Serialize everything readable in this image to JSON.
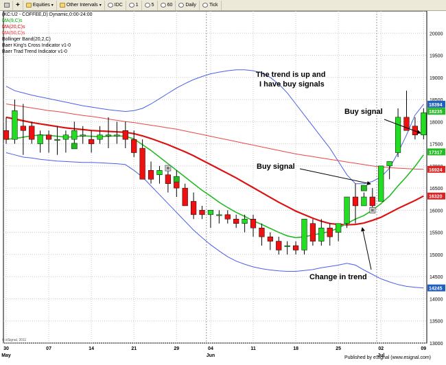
{
  "toolbar": {
    "items": [
      {
        "label": "",
        "icon": "pin-icon"
      },
      {
        "label": "",
        "icon": "plus-icon"
      },
      {
        "label": "Equities",
        "icon": "folder-icon",
        "dropdown": true
      },
      {
        "label": "Other Intervals",
        "icon": "folder-icon",
        "dropdown": true
      },
      {
        "label": "IDC",
        "icon": "clock-icon"
      },
      {
        "label": "1",
        "icon": "clock-icon"
      },
      {
        "label": "5",
        "icon": "clock-icon"
      },
      {
        "label": "60",
        "icon": "clock-icon"
      },
      {
        "label": "Daily",
        "icon": "clock-icon"
      },
      {
        "label": "Tick",
        "icon": "clock-icon"
      }
    ]
  },
  "legend": {
    "title": "(KC:U2 - COFFEE,D) Dynamic,0:00-24:00",
    "lines": [
      {
        "text": "MA(9,C)s",
        "color": "#00aa00"
      },
      {
        "text": "MA(20,C)s",
        "color": "#dd0000"
      },
      {
        "text": "MA(50,C)s",
        "color": "#ee3333"
      },
      {
        "text": "Bollinger Band(20,2,C)",
        "color": "#000000"
      },
      {
        "text": "Baer King's Cross Indicator v1-0",
        "color": "#000000"
      },
      {
        "text": "Baer Trad Trend Indicator v1-0",
        "color": "#000000"
      }
    ]
  },
  "annotations": [
    {
      "text": "The trend is up and",
      "x": "May 24",
      "y": 18950
    },
    {
      "text": "I have buy signals",
      "x": "May 24",
      "y": 18650
    },
    {
      "text": "Buy signal",
      "x": "Jun 28",
      "y": 17450
    },
    {
      "text": "Buy signal",
      "x": "Jul 02",
      "y": 18620
    },
    {
      "text": "Change in trend",
      "x": "Jun 25",
      "y": 14790
    }
  ],
  "price_badges": [
    {
      "value": "18394",
      "color": "#1f5fbf"
    },
    {
      "value": "18235",
      "color": "#22bb22"
    },
    {
      "value": "17317",
      "color": "#22bb22"
    },
    {
      "value": "16924",
      "color": "#dd2222"
    },
    {
      "value": "16320",
      "color": "#dd2222"
    },
    {
      "value": "14245",
      "color": "#1f5fbf"
    }
  ],
  "footer": {
    "watermark": "© eSignal, 2011",
    "published": "Published by eSignal (www.esignal.com)"
  },
  "chart_data": {
    "type": "candlestick",
    "symbol": "KC:U2",
    "name": "COFFEE",
    "interval": "D",
    "ylim": [
      13000,
      20500
    ],
    "yticks": [
      13000,
      13500,
      14000,
      14500,
      15000,
      15500,
      16000,
      16500,
      17000,
      17500,
      18000,
      18500,
      19000,
      19500,
      20000
    ],
    "x_labels": [
      {
        "day": "30",
        "month": "May",
        "index": 0
      },
      {
        "day": "07",
        "month": "",
        "index": 5
      },
      {
        "day": "14",
        "month": "",
        "index": 10
      },
      {
        "day": "21",
        "month": "",
        "index": 15
      },
      {
        "day": "29",
        "month": "",
        "index": 20
      },
      {
        "day": "04",
        "month": "Jun",
        "index": 24
      },
      {
        "day": "11",
        "month": "",
        "index": 29
      },
      {
        "day": "18",
        "month": "",
        "index": 34
      },
      {
        "day": "25",
        "month": "",
        "index": 39
      },
      {
        "day": "02",
        "month": "Jul",
        "index": 44
      },
      {
        "day": "09",
        "month": "",
        "index": 49
      }
    ],
    "month_separators": [
      24,
      44
    ],
    "candles": [
      [
        17800,
        18100,
        17500,
        17600
      ],
      [
        17600,
        18500,
        17500,
        18250
      ],
      [
        17900,
        18400,
        17250,
        17800
      ],
      [
        17900,
        18000,
        17500,
        17600
      ],
      [
        17500,
        17800,
        17300,
        17700
      ],
      [
        17700,
        17800,
        17300,
        17600
      ],
      [
        17600,
        17900,
        17250,
        17600
      ],
      [
        17600,
        17800,
        17300,
        17700
      ],
      [
        17600,
        18000,
        17500,
        17800
      ],
      [
        17700,
        17900,
        17500,
        17700
      ],
      [
        17600,
        17800,
        17300,
        17500
      ],
      [
        17600,
        17900,
        17500,
        17700
      ],
      [
        17700,
        18100,
        17400,
        17700
      ],
      [
        17700,
        18000,
        17500,
        17700
      ],
      [
        17800,
        18000,
        17400,
        17600
      ],
      [
        17600,
        17800,
        17200,
        17300
      ],
      [
        17400,
        17600,
        16700,
        16700
      ],
      [
        16900,
        17100,
        16600,
        16700
      ],
      [
        16800,
        17000,
        16600,
        16900
      ],
      [
        16800,
        17000,
        16400,
        16600
      ],
      [
        16700,
        16900,
        16300,
        16500
      ],
      [
        16500,
        16600,
        16100,
        16100
      ],
      [
        16200,
        16400,
        15800,
        15900
      ],
      [
        16000,
        16100,
        15800,
        15900
      ],
      [
        15900,
        16000,
        15600,
        16000
      ],
      [
        15900,
        16000,
        15700,
        15900
      ],
      [
        15900,
        16000,
        15700,
        15800
      ],
      [
        15800,
        15900,
        15600,
        15700
      ],
      [
        15700,
        15900,
        15500,
        15800
      ],
      [
        15800,
        15900,
        15400,
        15600
      ],
      [
        15600,
        15700,
        15200,
        15400
      ],
      [
        15400,
        15500,
        15100,
        15300
      ],
      [
        15300,
        15400,
        15000,
        15100
      ],
      [
        15200,
        15300,
        15000,
        15200
      ],
      [
        15200,
        15300,
        15000,
        15100
      ],
      [
        15100,
        15800,
        15000,
        15800
      ],
      [
        15700,
        15800,
        15200,
        15300
      ],
      [
        15300,
        15800,
        15200,
        15600
      ],
      [
        15600,
        15700,
        15200,
        15400
      ],
      [
        15500,
        15700,
        15300,
        15700
      ],
      [
        15700,
        16300,
        15600,
        16300
      ],
      [
        16300,
        16600,
        15700,
        16100
      ],
      [
        16100,
        16400,
        16100,
        16300
      ],
      [
        16300,
        16500,
        16000,
        16100
      ],
      [
        16200,
        17000,
        16200,
        17000
      ],
      [
        17000,
        17100,
        16700,
        17100
      ],
      [
        17300,
        18300,
        17200,
        18100
      ],
      [
        18100,
        18700,
        17800,
        17800
      ],
      [
        17900,
        18100,
        17600,
        17700
      ],
      [
        17700,
        18300,
        17600,
        18200
      ]
    ],
    "ma9": [
      17600,
      17620,
      17650,
      17680,
      17700,
      17690,
      17670,
      17650,
      17660,
      17680,
      17670,
      17660,
      17670,
      17680,
      17670,
      17610,
      17480,
      17350,
      17200,
      17050,
      16900,
      16750,
      16600,
      16450,
      16320,
      16180,
      16060,
      15950,
      15860,
      15760,
      15680,
      15590,
      15500,
      15420,
      15380,
      15400,
      15440,
      15480,
      15520,
      15600,
      15700,
      15800,
      15880,
      16000,
      16150,
      16320,
      16550,
      16760,
      16990,
      17250
    ],
    "ma20": [
      18100,
      18060,
      18020,
      17980,
      17950,
      17920,
      17890,
      17860,
      17840,
      17820,
      17800,
      17790,
      17780,
      17770,
      17760,
      17730,
      17680,
      17620,
      17550,
      17480,
      17400,
      17320,
      17230,
      17130,
      17030,
      16930,
      16830,
      16730,
      16620,
      16510,
      16400,
      16290,
      16180,
      16080,
      15980,
      15900,
      15820,
      15750,
      15700,
      15680,
      15670,
      15680,
      15710,
      15770,
      15840,
      15940,
      16040,
      16130,
      16220,
      16320
    ],
    "ma50": [
      18400,
      18370,
      18340,
      18310,
      18280,
      18250,
      18230,
      18200,
      18170,
      18140,
      18120,
      18090,
      18060,
      18030,
      18000,
      17980,
      17950,
      17920,
      17890,
      17860,
      17830,
      17790,
      17750,
      17710,
      17670,
      17630,
      17590,
      17550,
      17510,
      17470,
      17430,
      17390,
      17350,
      17310,
      17270,
      17240,
      17210,
      17180,
      17150,
      17120,
      17090,
      17060,
      17030,
      17000,
      16980,
      16960,
      16950,
      16940,
      16930,
      16924
    ],
    "bb_upper": [
      18800,
      18700,
      18650,
      18600,
      18560,
      18520,
      18480,
      18440,
      18400,
      18360,
      18330,
      18300,
      18270,
      18250,
      18230,
      18250,
      18300,
      18400,
      18520,
      18640,
      18760,
      18860,
      18950,
      19020,
      19080,
      19120,
      19150,
      19170,
      19170,
      19150,
      19100,
      19000,
      18850,
      18650,
      18400,
      18150,
      17900,
      17650,
      17400,
      17100,
      16800,
      16600,
      16600,
      16650,
      16750,
      16950,
      17300,
      17700,
      18150,
      18394
    ],
    "bb_lower": [
      17300,
      17250,
      17200,
      17180,
      17150,
      17130,
      17110,
      17100,
      17090,
      17080,
      17080,
      17070,
      17060,
      17050,
      17030,
      16900,
      16750,
      16550,
      16350,
      16150,
      15950,
      15750,
      15550,
      15380,
      15220,
      15080,
      14950,
      14850,
      14780,
      14720,
      14680,
      14650,
      14630,
      14620,
      14620,
      14640,
      14660,
      14700,
      14730,
      14760,
      14800,
      14760,
      14650,
      14550,
      14450,
      14380,
      14320,
      14280,
      14260,
      14245
    ],
    "markers": [
      {
        "type": "buy",
        "index": 8,
        "price": 17450,
        "color": "#22bb22"
      },
      {
        "type": "square",
        "index": 19,
        "price": 16950,
        "color": "#888888"
      },
      {
        "type": "buy",
        "index": 20,
        "price": 16700,
        "color": "#22bb22"
      },
      {
        "type": "buy",
        "index": 42,
        "price": 16500,
        "color": "#22bb22"
      },
      {
        "type": "square",
        "index": 43,
        "price": 16000,
        "color": "#888888"
      }
    ]
  }
}
